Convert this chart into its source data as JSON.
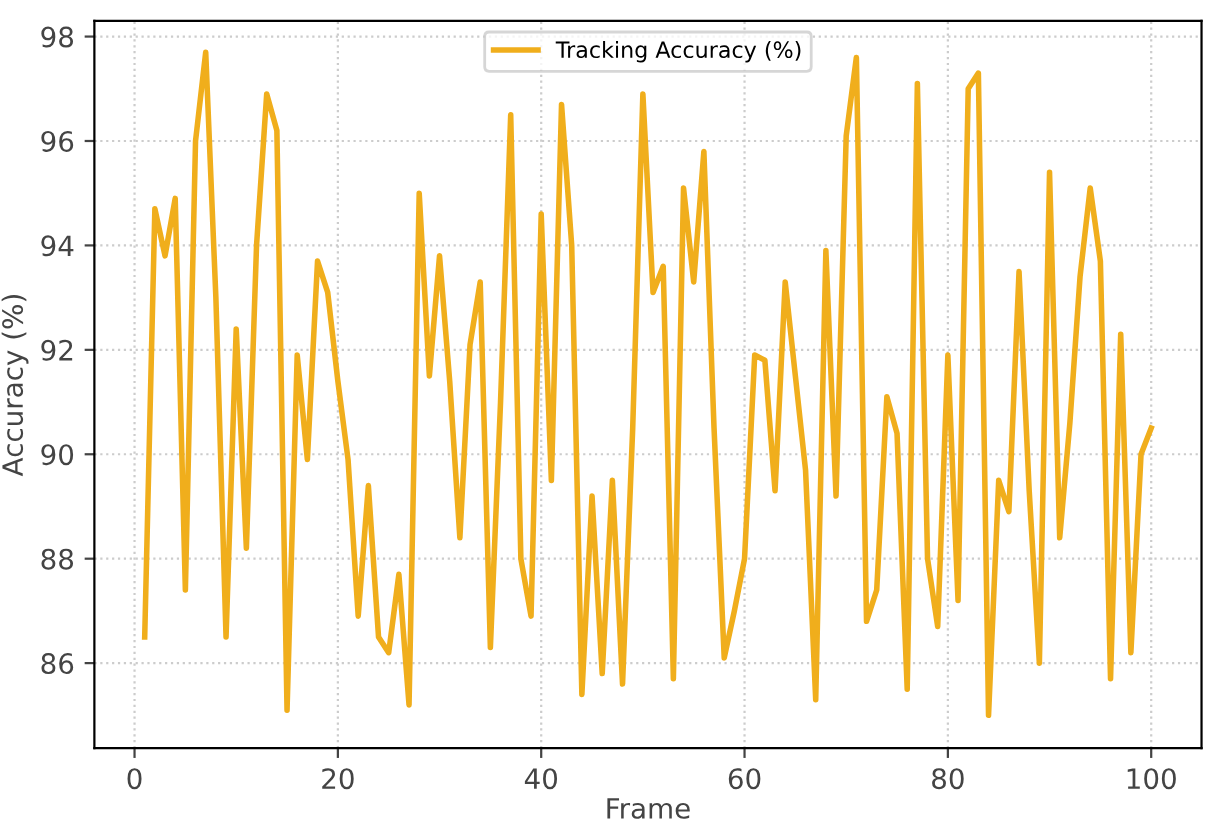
{
  "chart_data": {
    "type": "line",
    "xlabel": "Frame",
    "ylabel": "Accuracy (%)",
    "x": [
      1,
      2,
      3,
      4,
      5,
      6,
      7,
      8,
      9,
      10,
      11,
      12,
      13,
      14,
      15,
      16,
      17,
      18,
      19,
      20,
      21,
      22,
      23,
      24,
      25,
      26,
      27,
      28,
      29,
      30,
      31,
      32,
      33,
      34,
      35,
      36,
      37,
      38,
      39,
      40,
      41,
      42,
      43,
      44,
      45,
      46,
      47,
      48,
      49,
      50,
      51,
      52,
      53,
      54,
      55,
      56,
      57,
      58,
      59,
      60,
      61,
      62,
      63,
      64,
      65,
      66,
      67,
      68,
      69,
      70,
      71,
      72,
      73,
      74,
      75,
      76,
      77,
      78,
      79,
      80,
      81,
      82,
      83,
      84,
      85,
      86,
      87,
      88,
      89,
      90,
      91,
      92,
      93,
      94,
      95,
      96,
      97,
      98,
      99,
      100
    ],
    "series": [
      {
        "name": "Tracking Accuracy (%)",
        "color": "#f0ae1c",
        "values": [
          86.5,
          94.7,
          93.8,
          94.9,
          87.4,
          96.0,
          97.7,
          93.0,
          86.5,
          92.4,
          88.2,
          94.0,
          96.9,
          96.2,
          85.1,
          91.9,
          89.9,
          93.7,
          93.1,
          91.4,
          89.9,
          86.9,
          89.4,
          86.5,
          86.2,
          87.7,
          85.2,
          95.0,
          91.5,
          93.8,
          91.4,
          88.4,
          92.1,
          93.3,
          86.3,
          91.0,
          96.5,
          88.0,
          86.9,
          94.6,
          89.5,
          96.7,
          94.0,
          85.4,
          89.2,
          85.8,
          89.5,
          85.6,
          90.5,
          96.9,
          93.1,
          93.6,
          85.7,
          95.1,
          93.3,
          95.8,
          90.5,
          86.1,
          87.0,
          88.0,
          91.9,
          91.8,
          89.3,
          93.3,
          91.5,
          89.7,
          85.3,
          93.9,
          89.2,
          96.1,
          97.6,
          86.8,
          87.4,
          91.1,
          90.4,
          85.5,
          97.1,
          88.0,
          86.7,
          91.9,
          87.2,
          97.0,
          97.3,
          85.0,
          89.5,
          88.9,
          93.5,
          89.3,
          86.0,
          95.4,
          88.4,
          90.6,
          93.4,
          95.1,
          93.7,
          85.7,
          92.3,
          86.2,
          90.0,
          90.5
        ]
      }
    ],
    "xlim": [
      -3.95,
      104.95
    ],
    "xticks": [
      0,
      20,
      40,
      60,
      80,
      100
    ],
    "ylim": [
      84.37,
      98.3
    ],
    "yticks": [
      86,
      88,
      90,
      92,
      94,
      96,
      98
    ],
    "grid": true,
    "legend": "top",
    "line_style": "solid",
    "marker": "none"
  }
}
